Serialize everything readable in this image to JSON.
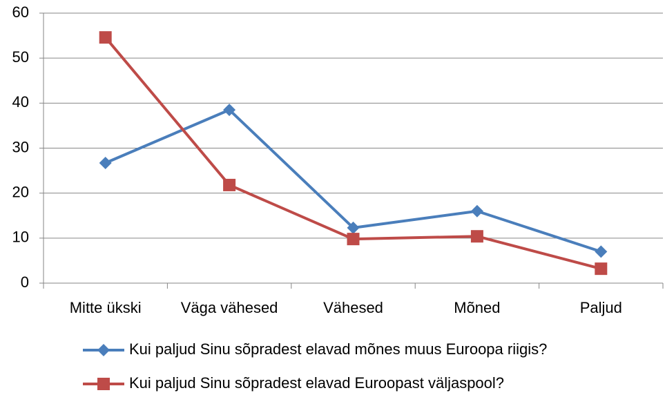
{
  "chart_data": {
    "type": "line",
    "categories": [
      "Mitte ükski",
      "Väga vähesed",
      "Vähesed",
      "Mõned",
      "Paljud"
    ],
    "series": [
      {
        "name": "Kui paljud Sinu sõpradest elavad mõnes muus Euroopa riigis?",
        "color": "#4a7ebb",
        "marker": "diamond",
        "values": [
          26.7,
          38.5,
          12.3,
          16,
          7
        ]
      },
      {
        "name": "Kui paljud Sinu sõpradest elavad Euroopast väljaspool?",
        "color": "#be4b48",
        "marker": "square",
        "values": [
          54.6,
          21.8,
          9.8,
          10.4,
          3.2
        ]
      }
    ],
    "ylim": [
      0,
      60
    ],
    "yticks": [
      0,
      10,
      20,
      30,
      40,
      50,
      60
    ],
    "grid": true,
    "legend": "bottom"
  }
}
